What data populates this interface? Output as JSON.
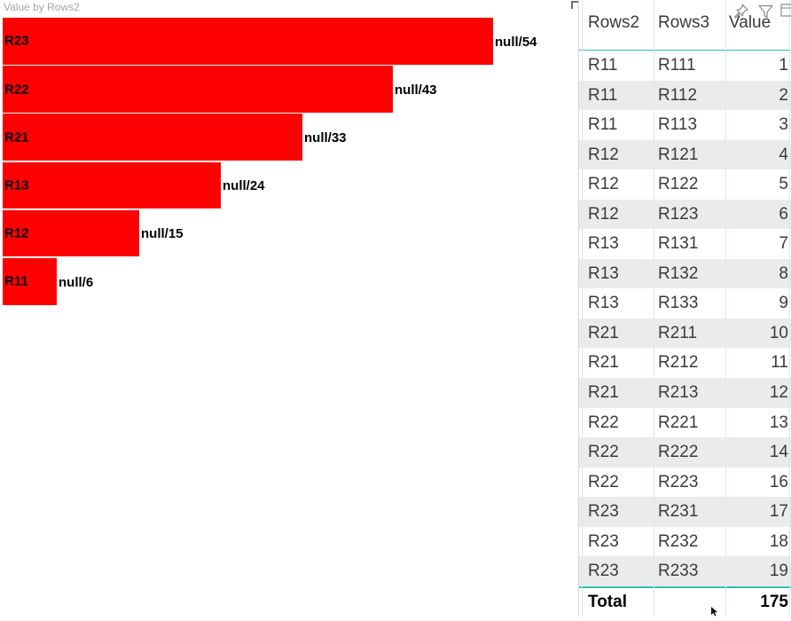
{
  "chart_data": {
    "type": "bar",
    "orientation": "horizontal",
    "title": "Value by Rows2",
    "categories": [
      "R23",
      "R22",
      "R21",
      "R13",
      "R12",
      "R11"
    ],
    "values": [
      54,
      43,
      33,
      24,
      15,
      6
    ],
    "bar_labels": [
      "null/54",
      "null/43",
      "null/33",
      "null/24",
      "null/15",
      "null/6"
    ],
    "xlim": [
      0,
      54
    ],
    "bar_color": "#FF0000",
    "grid": false,
    "legend": "none",
    "category_labels_inside_bar": true,
    "value_labels_outside_end": true
  },
  "table": {
    "columns": [
      "Rows2",
      "Rows3",
      "Value"
    ],
    "rows": [
      [
        "R11",
        "R111",
        "1"
      ],
      [
        "R11",
        "R112",
        "2"
      ],
      [
        "R11",
        "R113",
        "3"
      ],
      [
        "R12",
        "R121",
        "4"
      ],
      [
        "R12",
        "R122",
        "5"
      ],
      [
        "R12",
        "R123",
        "6"
      ],
      [
        "R13",
        "R131",
        "7"
      ],
      [
        "R13",
        "R132",
        "8"
      ],
      [
        "R13",
        "R133",
        "9"
      ],
      [
        "R21",
        "R211",
        "10"
      ],
      [
        "R21",
        "R212",
        "11"
      ],
      [
        "R21",
        "R213",
        "12"
      ],
      [
        "R22",
        "R221",
        "13"
      ],
      [
        "R22",
        "R222",
        "14"
      ],
      [
        "R22",
        "R223",
        "16"
      ],
      [
        "R23",
        "R231",
        "17"
      ],
      [
        "R23",
        "R232",
        "18"
      ],
      [
        "R23",
        "R233",
        "19"
      ]
    ],
    "total": {
      "label": "Total",
      "value": "175"
    }
  },
  "visual_header": {
    "icons": [
      "pin-icon",
      "filter-icon",
      "clipped-icon"
    ]
  },
  "colors": {
    "bar_red": "#FF0000",
    "accent_teal": "#2FBFB6",
    "gridline_teal": "#D5EEEB",
    "alt_row_gray": "#EBEBEB",
    "title_gray": "#A6A6A6",
    "text_dark": "#3B3B3B",
    "visual_border": "#D8D8D8",
    "icon_gray": "#8A8A8A"
  }
}
